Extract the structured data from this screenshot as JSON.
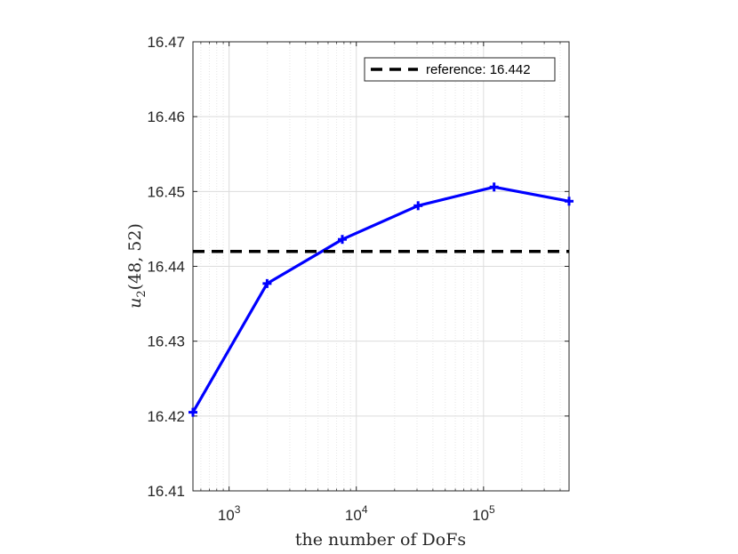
{
  "chart_data": {
    "type": "line",
    "xscale": "log",
    "xlabel": "the number of DoFs",
    "ylabel": "u_2(48, 52)",
    "ylabel_parts": {
      "base": "u",
      "sub": "2",
      "args": "(48, 52)"
    },
    "xlim": [
      520,
      470000
    ],
    "ylim": [
      16.41,
      16.47
    ],
    "yticks": [
      "16.41",
      "16.42",
      "16.43",
      "16.44",
      "16.45",
      "16.46",
      "16.47"
    ],
    "xticks": [
      {
        "value": 1000,
        "base": "10",
        "exp": "3"
      },
      {
        "value": 10000,
        "base": "10",
        "exp": "4"
      },
      {
        "value": 100000,
        "base": "10",
        "exp": "5"
      }
    ],
    "grid": true,
    "legend_position": "top-right",
    "series": [
      {
        "style": "solid",
        "marker": "plus",
        "color": "#0000ff",
        "x": [
          520,
          1990,
          7760,
          30600,
          121000,
          470000
        ],
        "y": [
          16.4205,
          16.4377,
          16.4436,
          16.4481,
          16.4506,
          16.4487
        ]
      },
      {
        "name": "reference: 16.442",
        "style": "dashed",
        "color": "#000000",
        "x": [
          520,
          470000
        ],
        "y": [
          16.442,
          16.442
        ]
      }
    ]
  }
}
